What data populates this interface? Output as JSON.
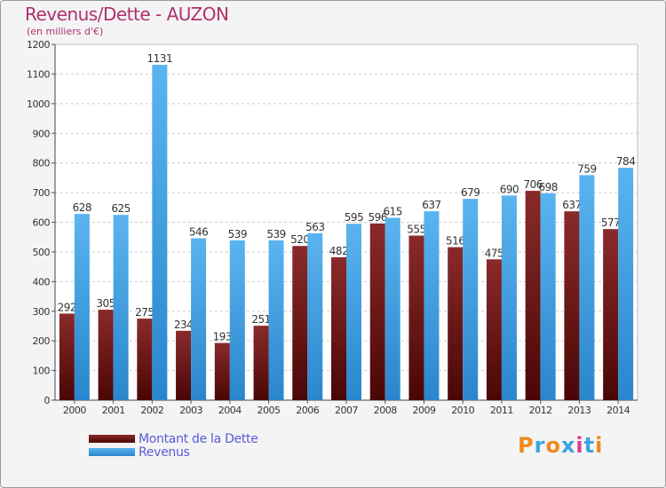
{
  "chart_data": {
    "type": "bar",
    "title": "Revenus/Dette - AUZON",
    "subtitle": "(en milliers d'€)",
    "categories": [
      "2000",
      "2001",
      "2002",
      "2003",
      "2004",
      "2005",
      "2006",
      "2007",
      "2008",
      "2009",
      "2010",
      "2011",
      "2012",
      "2013",
      "2014"
    ],
    "series": [
      {
        "name": "Montant de la Dette",
        "color": "#7a1a1a",
        "values": [
          292,
          305,
          275,
          234,
          193,
          251,
          520,
          482,
          596,
          555,
          516,
          475,
          706,
          637,
          577
        ]
      },
      {
        "name": "Revenus",
        "color": "#4aa3e6",
        "values": [
          628,
          625,
          1131,
          546,
          539,
          539,
          563,
          595,
          615,
          637,
          679,
          690,
          698,
          759,
          784
        ]
      }
    ],
    "ylim": [
      0,
      1200
    ],
    "yticks": [
      0,
      100,
      200,
      300,
      400,
      500,
      600,
      700,
      800,
      900,
      1000,
      1100,
      1200
    ],
    "grid": true,
    "legend": "bottom-left"
  },
  "logo": {
    "text": "Proxiti",
    "colors": [
      "#f08a1c",
      "#3aa3e0",
      "#f08a1c",
      "#3aa3e0",
      "#e23a8a",
      "#3aa3e0",
      "#f08a1c"
    ]
  }
}
